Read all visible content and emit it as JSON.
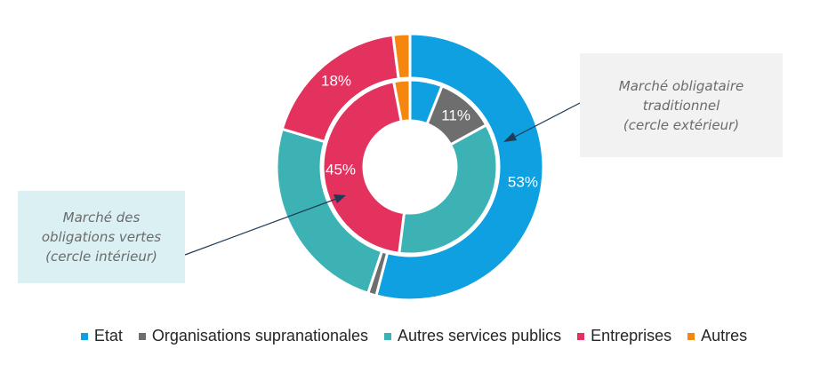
{
  "chart_data": {
    "type": "donut",
    "categories": [
      "Etat",
      "Organisations supranationales",
      "Autres services publics",
      "Entreprises",
      "Autres"
    ],
    "colors": [
      "#0ea0e0",
      "#6e6e6e",
      "#3cb2b5",
      "#e3325e",
      "#f5860f"
    ],
    "series": [
      {
        "name": "Marché obligataire traditionnel (cercle extérieur)",
        "ring": "outer",
        "values": [
          53,
          1,
          24,
          18,
          2
        ],
        "labels": [
          "53%",
          "",
          "",
          "18%",
          ""
        ]
      },
      {
        "name": "Marché des obligations vertes (cercle intérieur)",
        "ring": "inner",
        "values": [
          6,
          11,
          35,
          45,
          3
        ],
        "labels": [
          "",
          "11%",
          "",
          "45%",
          ""
        ]
      }
    ]
  },
  "callouts": {
    "outer": "Marché obligataire\ntraditionnel\n(cercle extérieur)",
    "inner": "Marché des\nobligations vertes\n(cercle intérieur)"
  },
  "legend": {
    "items": [
      "Etat",
      "Organisations supranationales",
      "Autres services publics",
      "Entreprises",
      "Autres"
    ]
  }
}
